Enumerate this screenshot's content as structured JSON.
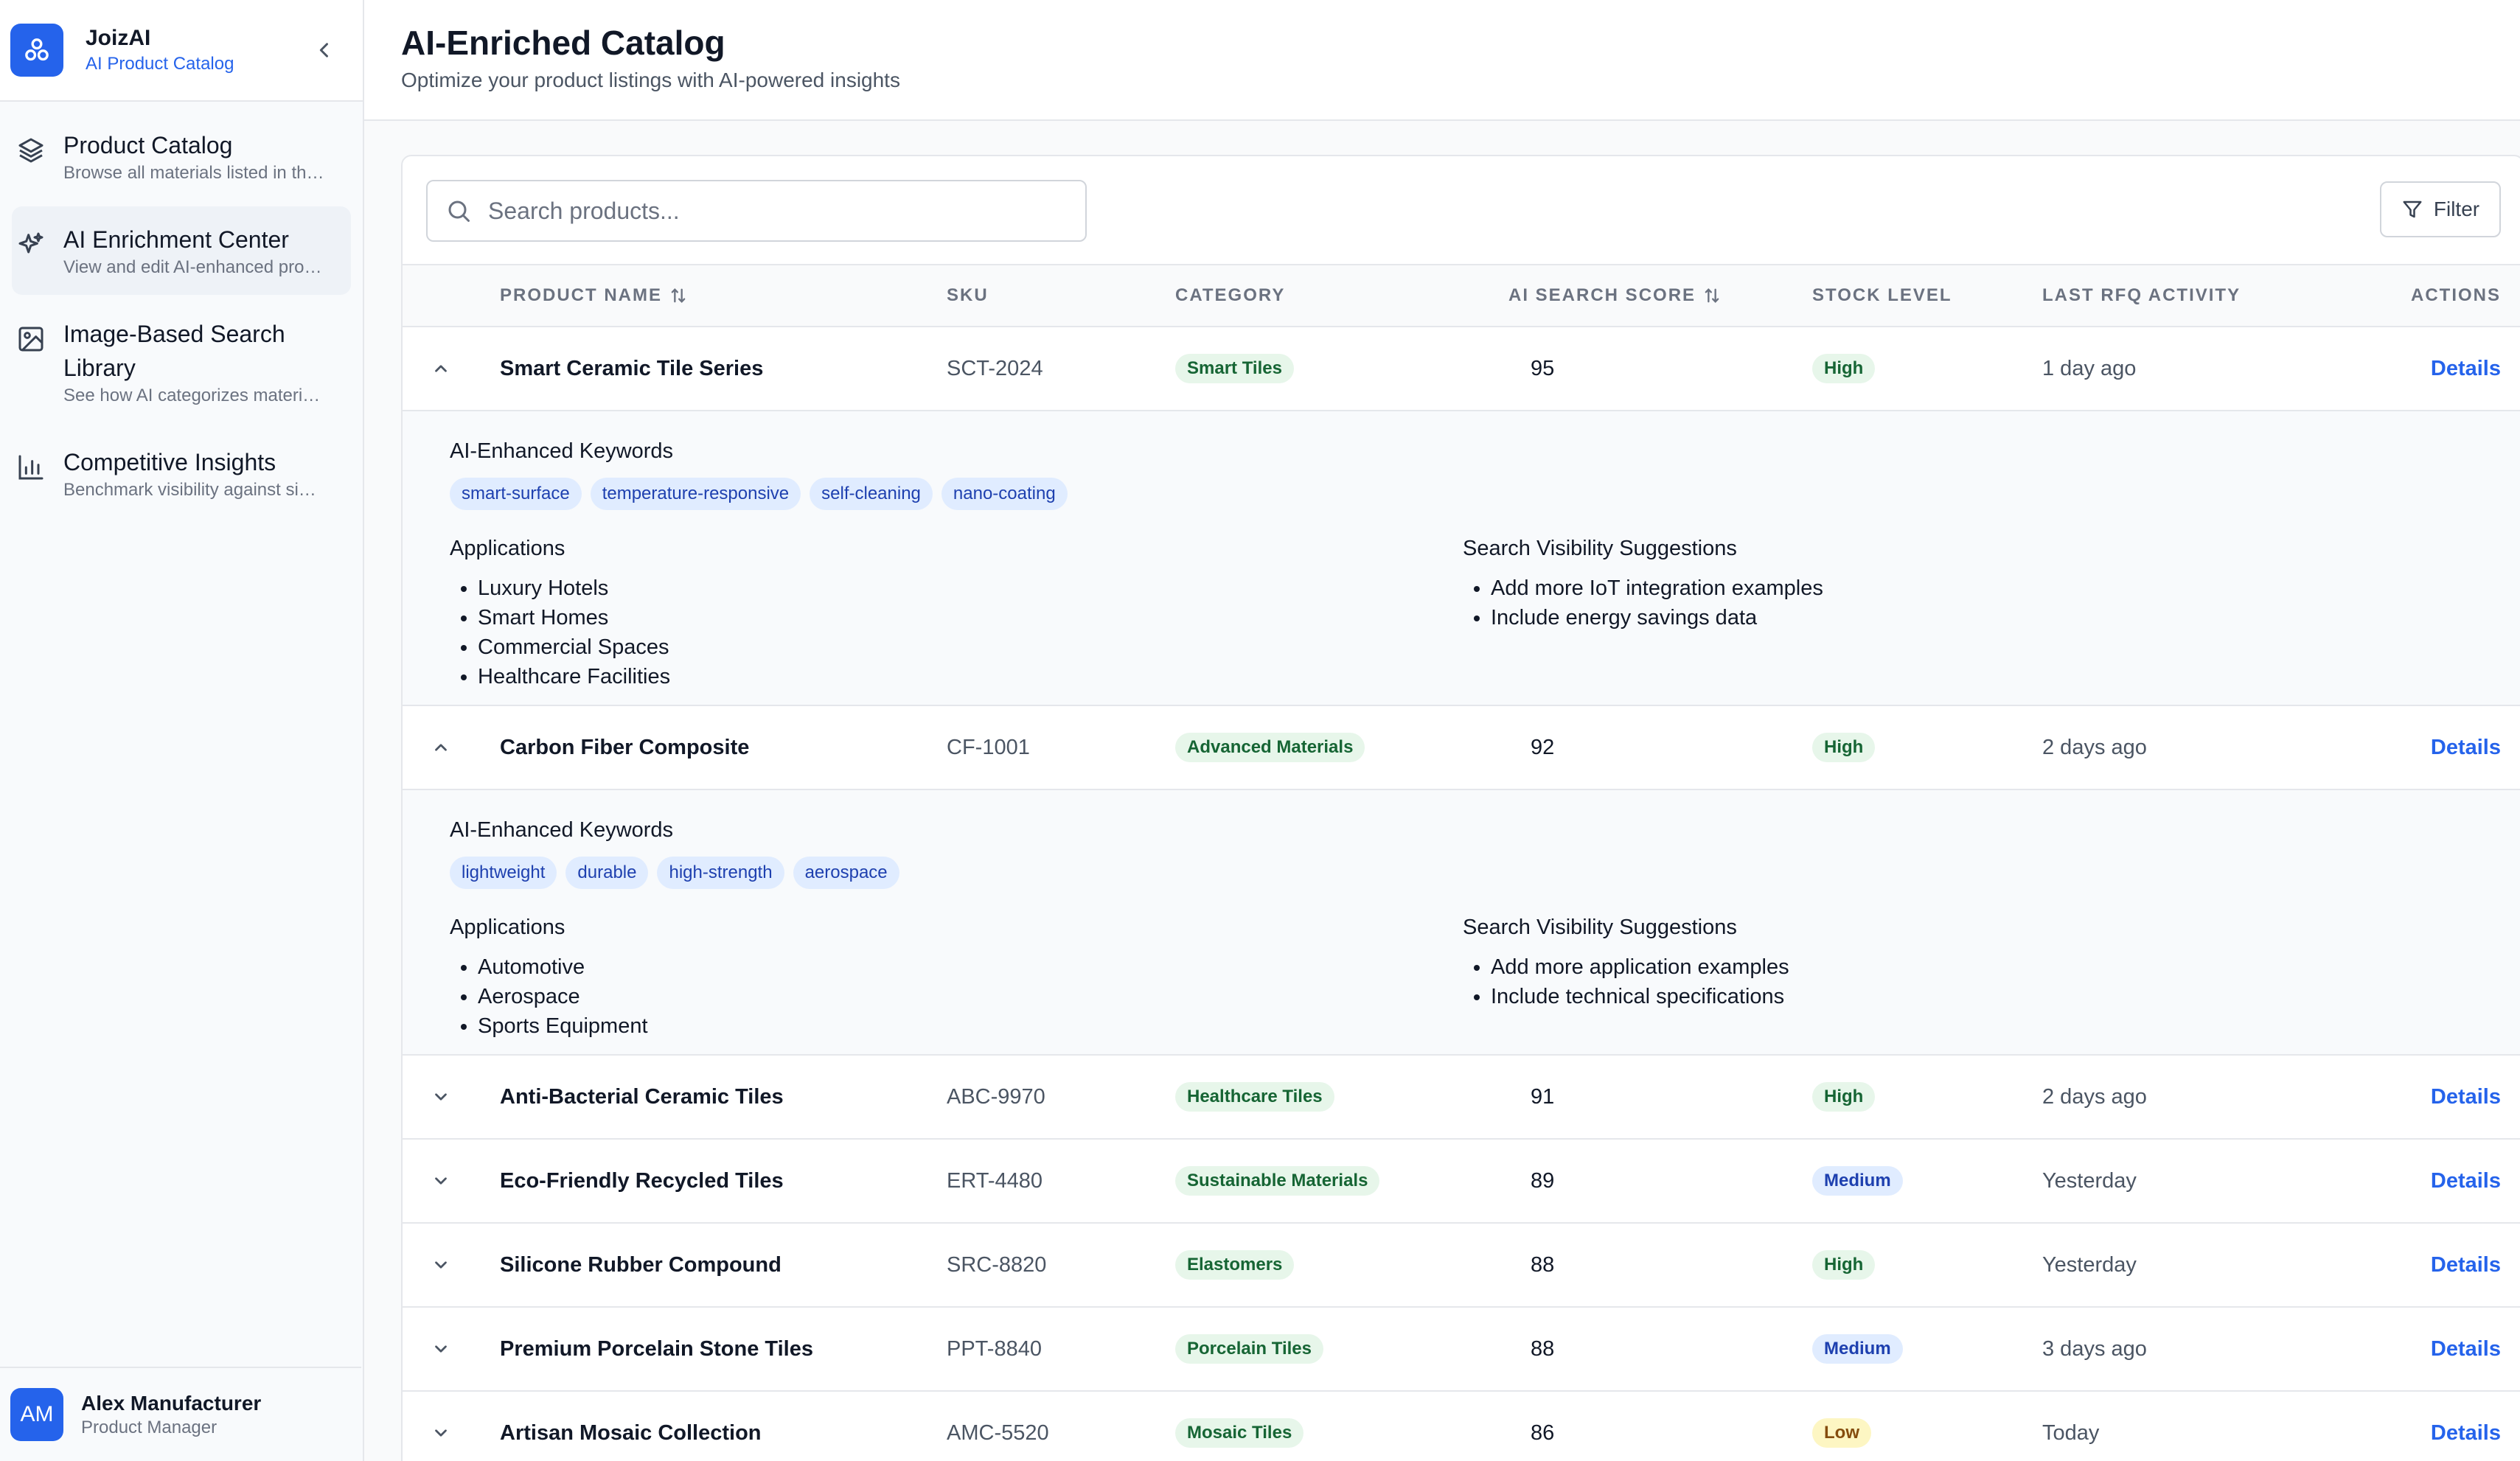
{
  "brand": {
    "name": "JoizAI",
    "subtitle": "AI Product Catalog"
  },
  "sidebar": {
    "items": [
      {
        "title": "Product Catalog",
        "desc": "Browse all materials listed in the catalog",
        "icon": "layers-icon",
        "active": false
      },
      {
        "title": "AI Enrichment Center",
        "desc": "View and edit AI-enhanced product data",
        "icon": "sparkles-icon",
        "active": true
      },
      {
        "title": "Image-Based Search Library",
        "desc": "See how AI categorizes materials by image",
        "icon": "image-icon",
        "active": false
      },
      {
        "title": "Competitive Insights",
        "desc": "Benchmark visibility against similar products",
        "icon": "bar-chart-icon",
        "active": false
      }
    ]
  },
  "user": {
    "initials": "AM",
    "name": "Alex Manufacturer",
    "role": "Product Manager"
  },
  "page": {
    "title": "AI-Enriched Catalog",
    "subtitle": "Optimize your product listings with AI-powered insights"
  },
  "toolbar": {
    "search_placeholder": "Search products...",
    "filter_label": "Filter"
  },
  "table": {
    "headers": {
      "product_name": "PRODUCT NAME",
      "sku": "SKU",
      "category": "CATEGORY",
      "ai_score": "AI SEARCH SCORE",
      "stock": "STOCK LEVEL",
      "rfq": "LAST RFQ ACTIVITY",
      "actions": "ACTIONS"
    },
    "details_label": "Details",
    "expanded_labels": {
      "keywords": "AI-Enhanced Keywords",
      "applications": "Applications",
      "suggestions": "Search Visibility Suggestions"
    },
    "rows": [
      {
        "name": "Smart Ceramic Tile Series",
        "sku": "SCT-2024",
        "category": "Smart Tiles",
        "score": "95",
        "stock": "High",
        "rfq": "1 day ago",
        "expanded": true,
        "keywords": [
          "smart-surface",
          "temperature-responsive",
          "self-cleaning",
          "nano-coating"
        ],
        "applications": [
          "Luxury Hotels",
          "Smart Homes",
          "Commercial Spaces",
          "Healthcare Facilities"
        ],
        "suggestions": [
          "Add more IoT integration examples",
          "Include energy savings data"
        ]
      },
      {
        "name": "Carbon Fiber Composite",
        "sku": "CF-1001",
        "category": "Advanced Materials",
        "score": "92",
        "stock": "High",
        "rfq": "2 days ago",
        "expanded": true,
        "keywords": [
          "lightweight",
          "durable",
          "high-strength",
          "aerospace"
        ],
        "applications": [
          "Automotive",
          "Aerospace",
          "Sports Equipment"
        ],
        "suggestions": [
          "Add more application examples",
          "Include technical specifications"
        ]
      },
      {
        "name": "Anti-Bacterial Ceramic Tiles",
        "sku": "ABC-9970",
        "category": "Healthcare Tiles",
        "score": "91",
        "stock": "High",
        "rfq": "2 days ago",
        "expanded": false
      },
      {
        "name": "Eco-Friendly Recycled Tiles",
        "sku": "ERT-4480",
        "category": "Sustainable Materials",
        "score": "89",
        "stock": "Medium",
        "rfq": "Yesterday",
        "expanded": false
      },
      {
        "name": "Silicone Rubber Compound",
        "sku": "SRC-8820",
        "category": "Elastomers",
        "score": "88",
        "stock": "High",
        "rfq": "Yesterday",
        "expanded": false
      },
      {
        "name": "Premium Porcelain Stone Tiles",
        "sku": "PPT-8840",
        "category": "Porcelain Tiles",
        "score": "88",
        "stock": "Medium",
        "rfq": "3 days ago",
        "expanded": false
      },
      {
        "name": "Artisan Mosaic Collection",
        "sku": "AMC-5520",
        "category": "Mosaic Tiles",
        "score": "86",
        "stock": "Low",
        "rfq": "Today",
        "expanded": false
      }
    ]
  }
}
